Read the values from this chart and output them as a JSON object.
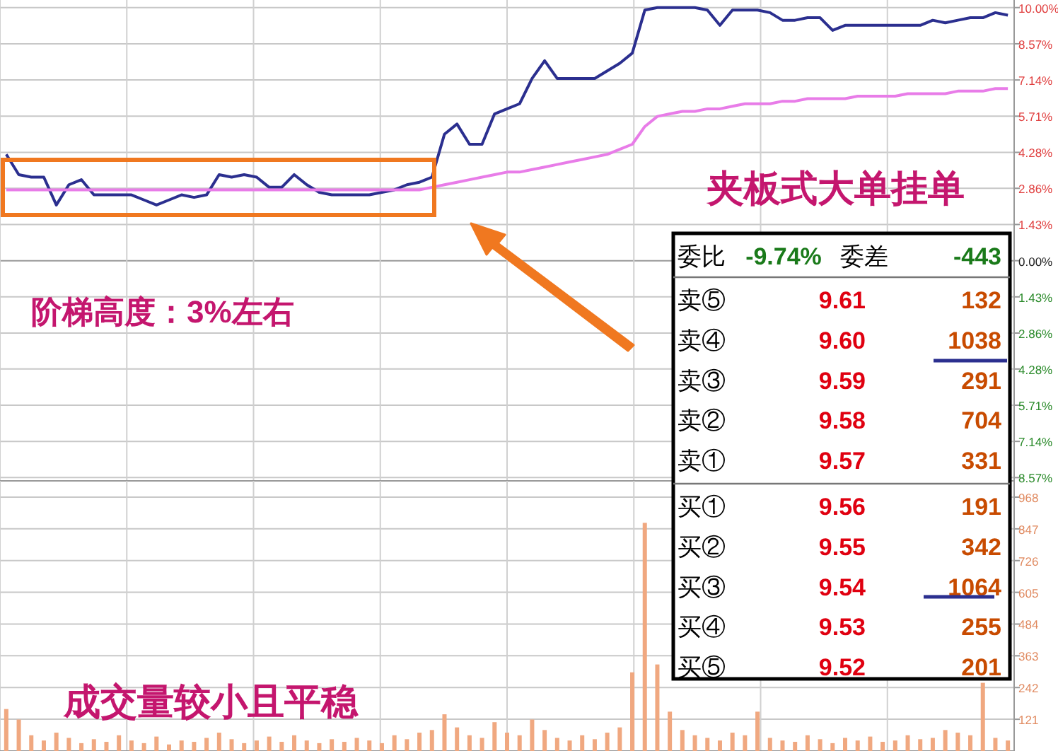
{
  "chart_data": [
    {
      "type": "line",
      "categories": [
        null,
        null,
        null,
        null,
        null,
        null,
        null,
        null,
        null,
        null,
        null,
        null,
        null,
        null,
        null,
        null,
        null,
        null,
        null,
        null,
        null,
        null,
        null,
        null,
        null,
        null,
        null,
        null,
        null,
        null,
        null,
        null,
        null,
        null,
        null,
        null,
        null,
        null,
        null,
        null,
        null,
        null,
        null,
        null,
        null,
        null,
        null,
        null,
        null,
        null,
        null,
        null,
        null,
        null,
        null,
        null,
        null,
        null,
        null,
        null,
        null,
        null,
        null,
        null,
        null,
        null,
        null,
        null,
        null,
        null,
        null,
        null,
        null,
        null,
        null,
        null,
        null,
        null,
        null,
        null,
        null
      ],
      "series": [
        {
          "color": "#2b2f8f",
          "values": [
            4.2,
            3.4,
            3.3,
            3.3,
            2.2,
            3.0,
            3.2,
            2.6,
            2.6,
            2.6,
            2.6,
            2.4,
            2.2,
            2.4,
            2.6,
            2.5,
            2.6,
            3.4,
            3.3,
            3.4,
            3.3,
            2.9,
            2.9,
            3.4,
            3.0,
            2.7,
            2.6,
            2.6,
            2.6,
            2.6,
            2.7,
            2.8,
            3.0,
            3.1,
            3.3,
            5.0,
            5.4,
            4.6,
            4.6,
            5.8,
            6.0,
            6.2,
            7.2,
            7.9,
            7.2,
            7.2,
            7.2,
            7.2,
            7.5,
            7.8,
            8.2,
            9.9,
            10.0,
            10.0,
            10.0,
            10.0,
            9.9,
            9.3,
            9.9,
            9.9,
            9.9,
            9.8,
            9.5,
            9.5,
            9.6,
            9.6,
            9.1,
            9.3,
            9.3,
            9.3,
            9.3,
            9.3,
            9.3,
            9.3,
            9.5,
            9.4,
            9.5,
            9.6,
            9.6,
            9.8,
            9.7
          ]
        },
        {
          "color": "#e87ce8",
          "values": [
            2.8,
            2.8,
            2.8,
            2.8,
            2.8,
            2.8,
            2.8,
            2.8,
            2.8,
            2.8,
            2.8,
            2.8,
            2.8,
            2.8,
            2.8,
            2.8,
            2.8,
            2.8,
            2.8,
            2.8,
            2.8,
            2.8,
            2.8,
            2.8,
            2.8,
            2.8,
            2.8,
            2.8,
            2.8,
            2.8,
            2.8,
            2.8,
            2.8,
            2.8,
            2.9,
            3.0,
            3.1,
            3.2,
            3.3,
            3.4,
            3.5,
            3.5,
            3.6,
            3.7,
            3.8,
            3.9,
            4.0,
            4.1,
            4.2,
            4.4,
            4.6,
            5.3,
            5.7,
            5.8,
            5.9,
            5.9,
            6.0,
            6.0,
            6.1,
            6.2,
            6.2,
            6.2,
            6.3,
            6.3,
            6.4,
            6.4,
            6.4,
            6.4,
            6.5,
            6.5,
            6.5,
            6.5,
            6.6,
            6.6,
            6.6,
            6.6,
            6.7,
            6.7,
            6.7,
            6.8,
            6.8
          ]
        }
      ],
      "ylim": [
        -8.7,
        10.3
      ],
      "yticks": [
        {
          "value": 10,
          "label": "10.00%"
        },
        {
          "value": 8.57,
          "label": "8.57%"
        },
        {
          "value": 7.14,
          "label": "7.14%"
        },
        {
          "value": 5.71,
          "label": "5.71%"
        },
        {
          "value": 4.28,
          "label": "4.28%"
        },
        {
          "value": 2.86,
          "label": "2.86%"
        },
        {
          "value": 1.43,
          "label": "1.43%"
        },
        {
          "value": 0,
          "label": "0.00%"
        },
        {
          "value": -1.43,
          "label": "1.43%"
        },
        {
          "value": -2.86,
          "label": "2.86%"
        },
        {
          "value": -4.28,
          "label": "4.28%"
        },
        {
          "value": -5.71,
          "label": "5.71%"
        },
        {
          "value": -7.14,
          "label": "7.14%"
        },
        {
          "value": -8.57,
          "label": "8.57%"
        }
      ],
      "tick_labels": "y",
      "grid": true,
      "annotations": [
        "夹板式大单挂单",
        "阶梯高度：3%左右"
      ]
    },
    {
      "type": "bar",
      "categories": [
        null,
        null,
        null,
        null,
        null,
        null,
        null,
        null,
        null,
        null,
        null,
        null,
        null,
        null,
        null,
        null,
        null,
        null,
        null,
        null,
        null,
        null,
        null,
        null,
        null,
        null,
        null,
        null,
        null,
        null,
        null,
        null,
        null,
        null,
        null,
        null,
        null,
        null,
        null,
        null,
        null,
        null,
        null,
        null,
        null,
        null,
        null,
        null,
        null,
        null,
        null,
        null,
        null,
        null,
        null,
        null,
        null,
        null,
        null,
        null,
        null,
        null,
        null,
        null,
        null,
        null,
        null,
        null,
        null,
        null,
        null,
        null,
        null,
        null,
        null,
        null,
        null,
        null,
        null,
        null,
        null
      ],
      "color": "#f0a880",
      "values": [
        160,
        120,
        60,
        40,
        70,
        50,
        30,
        45,
        35,
        60,
        40,
        30,
        55,
        25,
        40,
        35,
        50,
        70,
        45,
        30,
        40,
        55,
        35,
        60,
        40,
        30,
        45,
        35,
        50,
        40,
        30,
        60,
        45,
        70,
        80,
        140,
        90,
        60,
        50,
        110,
        70,
        60,
        120,
        80,
        50,
        40,
        60,
        45,
        70,
        90,
        300,
        870,
        330,
        150,
        80,
        60,
        50,
        40,
        70,
        60,
        150,
        50,
        40,
        35,
        60,
        45,
        30,
        50,
        40,
        55,
        35,
        40,
        60,
        45,
        50,
        80,
        70,
        60,
        260,
        50,
        40
      ],
      "ylim": [
        0,
        1030
      ],
      "yticks": [
        121,
        242,
        363,
        484,
        605,
        726,
        847,
        968
      ],
      "tick_labels": "y",
      "grid": true,
      "annotations": [
        "成交量较小且平稳"
      ]
    },
    {
      "type": "other",
      "categories": [
        "卖⑤",
        "卖④",
        "卖③",
        "卖②",
        "卖①",
        "买①",
        "买②",
        "买③",
        "买④",
        "买⑤"
      ],
      "series": [
        {
          "values": [
            9.61,
            9.6,
            9.59,
            9.58,
            9.57,
            9.56,
            9.55,
            9.54,
            9.53,
            9.52
          ],
          "value_labels": [
            "9.61",
            "9.60",
            "9.59",
            "9.58",
            "9.57",
            "9.56",
            "9.55",
            "9.54",
            "9.53",
            "9.52"
          ]
        },
        {
          "values": [
            132,
            1038,
            291,
            704,
            331,
            191,
            342,
            1064,
            255,
            201
          ],
          "value_labels": [
            "132",
            "1038",
            "291",
            "704",
            "331",
            "191",
            "342",
            "1064",
            "255",
            "201"
          ]
        }
      ],
      "annotations": [
        "委比",
        "-9.74%",
        "委差",
        "-443"
      ]
    }
  ]
}
